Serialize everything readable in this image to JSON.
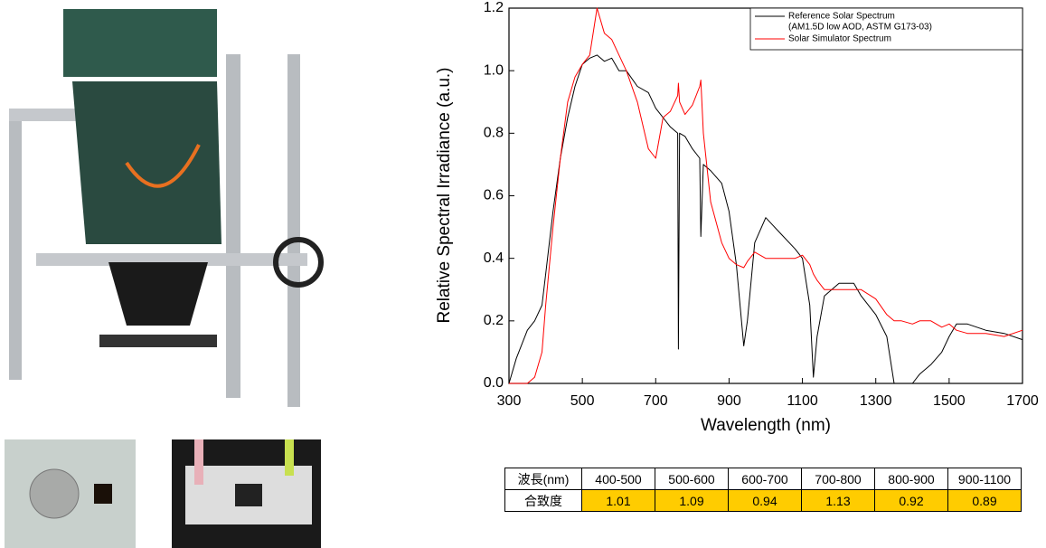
{
  "chart_data": {
    "type": "line",
    "x_label": "Wavelength (nm)",
    "y_label": "Relative Spectral Irradiance (a.u.)",
    "x": [
      300,
      320,
      350,
      370,
      390,
      400,
      420,
      440,
      460,
      480,
      500,
      520,
      540,
      560,
      580,
      600,
      620,
      650,
      680,
      700,
      720,
      740,
      760,
      762,
      765,
      780,
      800,
      820,
      823,
      830,
      850,
      880,
      900,
      920,
      940,
      950,
      970,
      1000,
      1040,
      1080,
      1100,
      1120,
      1130,
      1140,
      1160,
      1200,
      1240,
      1260,
      1300,
      1330,
      1350,
      1370,
      1400,
      1420,
      1450,
      1480,
      1500,
      1520,
      1550,
      1600,
      1650,
      1700
    ],
    "series": [
      {
        "name": "Reference Solar Spectrum",
        "legend_sublabel": "(AM1.5D low AOD, ASTM G173-03)",
        "color": "#000000",
        "values": [
          0,
          0.08,
          0.17,
          0.2,
          0.25,
          0.35,
          0.55,
          0.72,
          0.85,
          0.95,
          1.02,
          1.04,
          1.05,
          1.03,
          1.04,
          1.0,
          1.0,
          0.95,
          0.93,
          0.88,
          0.85,
          0.82,
          0.8,
          0.11,
          0.8,
          0.79,
          0.75,
          0.72,
          0.47,
          0.7,
          0.68,
          0.64,
          0.55,
          0.38,
          0.12,
          0.2,
          0.45,
          0.53,
          0.48,
          0.43,
          0.4,
          0.25,
          0.02,
          0.15,
          0.28,
          0.32,
          0.32,
          0.28,
          0.22,
          0.15,
          0,
          null,
          0,
          0.03,
          0.06,
          0.1,
          0.15,
          0.19,
          0.19,
          0.17,
          0.16,
          0.14
        ]
      },
      {
        "name": "Solar Simulator Spectrum",
        "color": "#ff0000",
        "values": [
          0,
          0,
          0,
          0.02,
          0.1,
          0.25,
          0.5,
          0.72,
          0.9,
          0.98,
          1.02,
          1.05,
          1.2,
          1.12,
          1.1,
          1.05,
          1.0,
          0.9,
          0.75,
          0.72,
          0.85,
          0.87,
          0.92,
          0.96,
          0.9,
          0.86,
          0.89,
          0.95,
          0.97,
          0.8,
          0.58,
          0.45,
          0.4,
          0.38,
          0.37,
          0.39,
          0.42,
          0.4,
          0.4,
          0.4,
          0.41,
          0.38,
          0.35,
          0.33,
          0.3,
          0.3,
          0.3,
          0.3,
          0.27,
          0.22,
          0.2,
          0.2,
          0.19,
          0.2,
          0.2,
          0.18,
          0.19,
          0.17,
          0.16,
          0.16,
          0.15,
          0.17
        ]
      }
    ],
    "xlim": [
      300,
      1700
    ],
    "xticks": [
      300,
      500,
      700,
      900,
      1100,
      1300,
      1500,
      1700
    ],
    "ylim": [
      0,
      1.2
    ],
    "yticks": [
      {
        "value": 0,
        "label": "0.0"
      },
      0.2,
      0.4,
      0.6,
      0.8,
      {
        "value": 1,
        "label": "1.0"
      },
      1.2
    ],
    "legend_position": "upper right"
  },
  "table": {
    "header": [
      "波長(nm)",
      "400-500",
      "500-600",
      "600-700",
      "700-800",
      "800-900",
      "900-1100"
    ],
    "rows": [
      [
        "合致度",
        1.01,
        1.09,
        0.94,
        1.13,
        0.92,
        0.89
      ]
    ]
  }
}
